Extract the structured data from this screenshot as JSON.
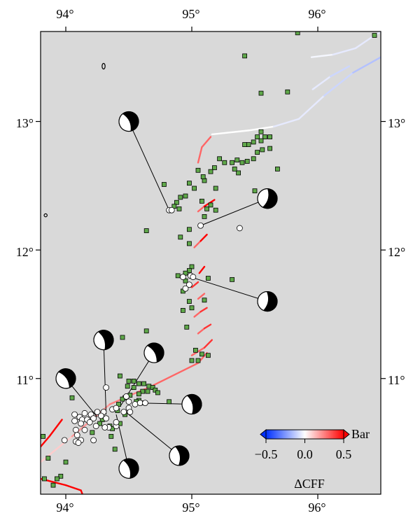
{
  "map": {
    "lon_range": [
      93.8,
      96.5
    ],
    "lat_range": [
      10.1,
      13.7
    ],
    "background_color": "#d9d9d9",
    "top_ticks": [
      "94°",
      "95°",
      "96°"
    ],
    "bottom_ticks": [
      "94°",
      "95°",
      "96°"
    ],
    "left_ticks": [
      "13°",
      "12°",
      "11°"
    ],
    "right_ticks": [
      "13°",
      "12°",
      "11°"
    ],
    "tick_lons": [
      94,
      95,
      96
    ],
    "tick_lats": [
      13,
      12,
      11
    ]
  },
  "colorbar": {
    "unit": "Bar",
    "title": "ΔCFF",
    "tick_labels": [
      "−0.5",
      "0.0",
      "0.5"
    ],
    "tick_values": [
      -0.5,
      0,
      0.5
    ],
    "range": [
      -0.5,
      0.5
    ],
    "colors": {
      "negative": "#0030ff",
      "zero": "#ffffff",
      "positive": "#ff0000"
    }
  },
  "colors": {
    "aftershock_fill": "#5fa84a",
    "mainshock_fill": "#ffffff",
    "focal_dark": "#000000",
    "focal_light": "#ffffff"
  },
  "aftershocks": [
    [
      95.84,
      13.69
    ],
    [
      96.45,
      13.67
    ],
    [
      95.42,
      13.51
    ],
    [
      95.55,
      13.22
    ],
    [
      95.76,
      13.23
    ],
    [
      95.55,
      12.92
    ],
    [
      95.52,
      12.88
    ],
    [
      95.58,
      12.88
    ],
    [
      95.62,
      12.88
    ],
    [
      95.55,
      12.85
    ],
    [
      95.49,
      12.84
    ],
    [
      95.45,
      12.82
    ],
    [
      95.42,
      12.82
    ],
    [
      95.56,
      12.78
    ],
    [
      95.62,
      12.79
    ],
    [
      95.52,
      12.76
    ],
    [
      95.36,
      12.7
    ],
    [
      95.32,
      12.68
    ],
    [
      95.4,
      12.68
    ],
    [
      95.44,
      12.69
    ],
    [
      95.49,
      12.71
    ],
    [
      95.22,
      12.71
    ],
    [
      95.26,
      12.68
    ],
    [
      95.18,
      12.64
    ],
    [
      95.15,
      12.61
    ],
    [
      95.1,
      12.54
    ],
    [
      95.09,
      12.57
    ],
    [
      95.37,
      12.6
    ],
    [
      95.34,
      12.63
    ],
    [
      95.5,
      12.46
    ],
    [
      95.68,
      12.63
    ],
    [
      95.05,
      12.62
    ],
    [
      94.98,
      12.52
    ],
    [
      94.78,
      12.51
    ],
    [
      95.02,
      12.48
    ],
    [
      95.19,
      12.48
    ],
    [
      94.95,
      12.42
    ],
    [
      94.91,
      12.41
    ],
    [
      95.08,
      12.38
    ],
    [
      94.88,
      12.37
    ],
    [
      94.86,
      12.34
    ],
    [
      94.9,
      12.32
    ],
    [
      95.12,
      12.32
    ],
    [
      95.19,
      12.31
    ],
    [
      95.15,
      12.35
    ],
    [
      95.1,
      12.26
    ],
    [
      94.64,
      12.15
    ],
    [
      94.98,
      12.16
    ],
    [
      94.91,
      12.1
    ],
    [
      94.98,
      12.05
    ],
    [
      95.0,
      11.87
    ],
    [
      94.98,
      11.84
    ],
    [
      94.95,
      11.82
    ],
    [
      94.89,
      11.8
    ],
    [
      94.95,
      11.76
    ],
    [
      95.13,
      11.78
    ],
    [
      95.32,
      11.77
    ],
    [
      94.93,
      11.68
    ],
    [
      94.98,
      11.6
    ],
    [
      95.1,
      11.61
    ],
    [
      94.93,
      11.53
    ],
    [
      95.0,
      11.55
    ],
    [
      94.96,
      11.4
    ],
    [
      94.64,
      11.37
    ],
    [
      94.45,
      11.32
    ],
    [
      95.03,
      11.22
    ],
    [
      95.08,
      11.19
    ],
    [
      95.13,
      11.18
    ],
    [
      95.0,
      11.14
    ],
    [
      95.05,
      11.14
    ],
    [
      94.43,
      11.02
    ],
    [
      94.5,
      10.98
    ],
    [
      94.54,
      10.98
    ],
    [
      94.49,
      10.94
    ],
    [
      94.54,
      10.93
    ],
    [
      94.58,
      10.96
    ],
    [
      94.62,
      10.96
    ],
    [
      94.66,
      10.94
    ],
    [
      94.69,
      10.93
    ],
    [
      94.71,
      10.91
    ],
    [
      94.73,
      10.89
    ],
    [
      94.61,
      10.9
    ],
    [
      94.65,
      10.9
    ],
    [
      94.58,
      10.88
    ],
    [
      94.51,
      10.87
    ],
    [
      94.47,
      10.85
    ],
    [
      94.45,
      10.84
    ],
    [
      94.58,
      10.83
    ],
    [
      94.56,
      10.82
    ],
    [
      94.61,
      10.81
    ],
    [
      94.05,
      10.85
    ],
    [
      94.82,
      10.82
    ],
    [
      94.42,
      10.8
    ],
    [
      94.41,
      10.75
    ],
    [
      94.47,
      10.72
    ],
    [
      94.29,
      10.68
    ],
    [
      94.27,
      10.65
    ],
    [
      94.35,
      10.63
    ],
    [
      94.37,
      10.61
    ],
    [
      94.43,
      10.65
    ],
    [
      94.21,
      10.58
    ],
    [
      94.36,
      10.55
    ],
    [
      94.39,
      10.45
    ],
    [
      93.82,
      10.55
    ],
    [
      93.86,
      10.38
    ],
    [
      94.0,
      10.35
    ],
    [
      93.96,
      10.24
    ],
    [
      93.83,
      10.22
    ],
    [
      93.9,
      10.17
    ],
    [
      93.93,
      10.22
    ]
  ],
  "mainshocks": [
    [
      94.82,
      12.31
    ],
    [
      94.84,
      12.31
    ],
    [
      95.07,
      12.19
    ],
    [
      95.38,
      12.17
    ],
    [
      94.93,
      11.79
    ],
    [
      94.99,
      11.8
    ],
    [
      94.98,
      11.73
    ],
    [
      95.01,
      11.79
    ],
    [
      94.95,
      11.7
    ],
    [
      94.32,
      10.93
    ],
    [
      94.48,
      10.86
    ],
    [
      94.5,
      10.82
    ],
    [
      94.55,
      10.8
    ],
    [
      94.59,
      10.81
    ],
    [
      94.63,
      10.81
    ],
    [
      94.5,
      10.77
    ],
    [
      94.51,
      10.74
    ],
    [
      94.46,
      10.74
    ],
    [
      94.37,
      10.76
    ],
    [
      94.4,
      10.77
    ],
    [
      94.3,
      10.74
    ],
    [
      94.25,
      10.74
    ],
    [
      94.2,
      10.72
    ],
    [
      94.15,
      10.73
    ],
    [
      94.07,
      10.72
    ],
    [
      94.11,
      10.7
    ],
    [
      94.13,
      10.68
    ],
    [
      94.07,
      10.67
    ],
    [
      94.17,
      10.68
    ],
    [
      94.22,
      10.69
    ],
    [
      94.28,
      10.71
    ],
    [
      94.32,
      10.69
    ],
    [
      94.19,
      10.66
    ],
    [
      94.12,
      10.65
    ],
    [
      94.15,
      10.6
    ],
    [
      94.24,
      10.63
    ],
    [
      94.08,
      10.6
    ],
    [
      94.09,
      10.56
    ],
    [
      93.99,
      10.52
    ],
    [
      94.08,
      10.51
    ],
    [
      94.12,
      10.52
    ],
    [
      94.22,
      10.52
    ],
    [
      94.34,
      10.62
    ],
    [
      94.4,
      10.63
    ],
    [
      94.4,
      10.66
    ],
    [
      94.31,
      10.62
    ],
    [
      94.1,
      10.5
    ]
  ],
  "focal_mechanisms": [
    {
      "lon": 94.5,
      "lat": 13.0,
      "link": [
        94.82,
        12.31
      ],
      "rot": -25
    },
    {
      "lon": 95.6,
      "lat": 12.4,
      "link": [
        95.07,
        12.19
      ],
      "rot": 15
    },
    {
      "lon": 95.6,
      "lat": 11.6,
      "link": [
        94.99,
        11.79
      ],
      "rot": 10
    },
    {
      "lon": 94.3,
      "lat": 11.3,
      "link": [
        94.32,
        10.72
      ],
      "rot": -20
    },
    {
      "lon": 94.7,
      "lat": 11.2,
      "link": [
        94.43,
        10.78
      ],
      "rot": -30
    },
    {
      "lon": 94.0,
      "lat": 11.0,
      "link": [
        94.25,
        10.7
      ],
      "rot": -35
    },
    {
      "lon": 95.0,
      "lat": 10.8,
      "link": [
        94.55,
        10.81
      ],
      "rot": -15
    },
    {
      "lon": 94.9,
      "lat": 10.4,
      "link": [
        94.45,
        10.76
      ],
      "rot": -10
    },
    {
      "lon": 94.5,
      "lat": 10.3,
      "link": [
        94.4,
        10.72
      ],
      "rot": -20
    }
  ],
  "faults": [
    {
      "values": [
        0.3,
        0.3
      ],
      "points": [
        [
          95.05,
          12.68
        ],
        [
          95.08,
          12.8
        ],
        [
          95.15,
          12.88
        ]
      ]
    },
    {
      "values": [
        0.3,
        0.5
      ],
      "points": [
        [
          95.05,
          12.3
        ],
        [
          95.1,
          12.34
        ],
        [
          95.18,
          12.39
        ]
      ]
    },
    {
      "values": [
        0.3,
        0.5
      ],
      "points": [
        [
          95.02,
          12.02
        ],
        [
          95.07,
          12.07
        ],
        [
          95.12,
          12.12
        ]
      ]
    },
    {
      "values": [
        0.5,
        0.3
      ],
      "points": [
        [
          95.06,
          11.82
        ],
        [
          95.1,
          11.87
        ]
      ]
    },
    {
      "values": [
        0.4,
        0.5
      ],
      "points": [
        [
          95.0,
          11.71
        ],
        [
          95.05,
          11.75
        ]
      ]
    },
    {
      "values": [
        0.3,
        0.3
      ],
      "points": [
        [
          95.05,
          11.62
        ],
        [
          95.1,
          11.66
        ]
      ]
    },
    {
      "values": [
        0.3,
        0.4
      ],
      "points": [
        [
          95.02,
          11.48
        ],
        [
          95.07,
          11.52
        ],
        [
          95.12,
          11.55
        ]
      ]
    },
    {
      "values": [
        0.3,
        0.4
      ],
      "points": [
        [
          95.05,
          11.35
        ],
        [
          95.1,
          11.39
        ],
        [
          95.15,
          11.42
        ]
      ]
    },
    {
      "values": [
        0.3,
        0.4
      ],
      "points": [
        [
          95.0,
          11.18
        ],
        [
          95.1,
          11.24
        ],
        [
          95.16,
          11.3
        ]
      ]
    },
    {
      "values": [
        0.1,
        0.2,
        0.25,
        0.3
      ],
      "points": [
        [
          93.8,
          10.35
        ],
        [
          94.05,
          10.55
        ],
        [
          94.35,
          10.8
        ],
        [
          94.7,
          10.95
        ],
        [
          95.05,
          11.12
        ],
        [
          95.12,
          11.2
        ]
      ]
    },
    {
      "values": [
        0.7,
        0.9
      ],
      "points": [
        [
          93.8,
          10.47
        ],
        [
          93.87,
          10.55
        ],
        [
          93.97,
          10.68
        ]
      ]
    },
    {
      "values": [
        0.9,
        0.9
      ],
      "points": [
        [
          93.8,
          10.22
        ],
        [
          94.0,
          10.17
        ],
        [
          94.12,
          10.13
        ]
      ]
    },
    {
      "values": [
        0.9,
        0.9
      ],
      "points": [
        [
          94.12,
          10.13
        ],
        [
          94.14,
          10.08
        ]
      ]
    },
    {
      "values": [
        0.0,
        0.0,
        -0.05
      ],
      "points": [
        [
          95.16,
          12.9
        ],
        [
          95.45,
          12.93
        ],
        [
          95.65,
          12.96
        ],
        [
          95.85,
          13.02
        ]
      ]
    },
    {
      "values": [
        -0.05,
        -0.1,
        -0.15
      ],
      "points": [
        [
          95.85,
          13.02
        ],
        [
          96.05,
          13.2
        ],
        [
          96.28,
          13.38
        ],
        [
          96.5,
          13.5
        ]
      ]
    },
    {
      "values": [
        -0.02,
        -0.05,
        -0.05
      ],
      "points": [
        [
          95.95,
          13.5
        ],
        [
          96.12,
          13.52
        ],
        [
          96.3,
          13.57
        ],
        [
          96.42,
          13.65
        ],
        [
          96.5,
          13.7
        ]
      ]
    },
    {
      "values": [
        -0.05,
        -0.1
      ],
      "points": [
        [
          95.96,
          13.25
        ],
        [
          96.1,
          13.35
        ],
        [
          96.25,
          13.43
        ]
      ]
    }
  ],
  "islands": [
    {
      "cx": 94.3,
      "cy": 13.43,
      "rx": 0.012,
      "ry": 0.022
    },
    {
      "cx": 93.84,
      "cy": 12.27,
      "rx": 0.012,
      "ry": 0.012
    }
  ]
}
